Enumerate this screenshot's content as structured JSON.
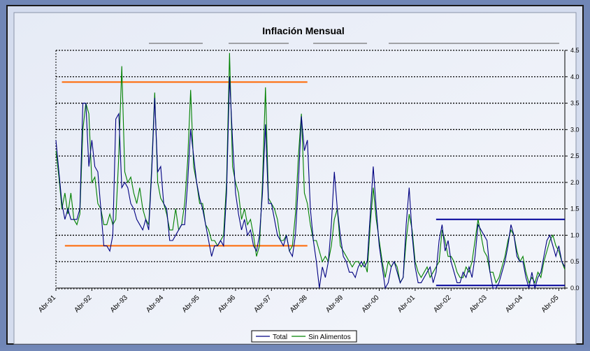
{
  "chart_data": {
    "type": "line",
    "title": "Inflación Mensual",
    "categories": [
      "Abr-91",
      null,
      null,
      null,
      null,
      null,
      null,
      null,
      null,
      null,
      null,
      null,
      "Abr-92",
      null,
      null,
      null,
      null,
      null,
      null,
      null,
      null,
      null,
      null,
      null,
      "Abr-93",
      null,
      null,
      null,
      null,
      null,
      null,
      null,
      null,
      null,
      null,
      null,
      "Abr-94",
      null,
      null,
      null,
      null,
      null,
      null,
      null,
      null,
      null,
      null,
      null,
      "Abr-95",
      null,
      null,
      null,
      null,
      null,
      null,
      null,
      null,
      null,
      null,
      null,
      "Abr-96",
      null,
      null,
      null,
      null,
      null,
      null,
      null,
      null,
      null,
      null,
      null,
      "Abr-97",
      null,
      null,
      null,
      null,
      null,
      null,
      null,
      null,
      null,
      null,
      null,
      "Abr-98",
      null,
      null,
      null,
      null,
      null,
      null,
      null,
      null,
      null,
      null,
      null,
      "Abr-99",
      null,
      null,
      null,
      null,
      null,
      null,
      null,
      null,
      null,
      null,
      null,
      "Abr-00",
      null,
      null,
      null,
      null,
      null,
      null,
      null,
      null,
      null,
      null,
      null,
      "Abr-01",
      null,
      null,
      null,
      null,
      null,
      null,
      null,
      null,
      null,
      null,
      null,
      "Abr-02",
      null,
      null,
      null,
      null,
      null,
      null,
      null,
      null,
      null,
      null,
      null,
      "Abr-03",
      null,
      null,
      null,
      null,
      null,
      null,
      null,
      null,
      null,
      null,
      null,
      "Abr-04",
      null,
      null,
      null,
      null,
      null,
      null,
      null,
      null,
      null,
      null,
      null,
      "Abr-05",
      null,
      null
    ],
    "series": [
      {
        "name": "Total",
        "color": "#000080",
        "values": [
          2.8,
          2.2,
          1.6,
          1.3,
          1.5,
          1.3,
          1.3,
          1.3,
          1.5,
          3.5,
          3.5,
          2.3,
          2.8,
          2.3,
          2.2,
          1.5,
          0.8,
          0.8,
          0.7,
          1.0,
          3.2,
          3.3,
          1.9,
          2.0,
          1.9,
          1.6,
          1.5,
          1.3,
          1.2,
          1.1,
          1.3,
          1.1,
          2.2,
          3.6,
          2.2,
          2.3,
          1.6,
          1.5,
          0.9,
          0.9,
          1.0,
          1.1,
          1.2,
          1.2,
          2.0,
          3.0,
          2.5,
          2.0,
          1.7,
          1.5,
          1.2,
          0.9,
          0.6,
          0.8,
          0.8,
          0.9,
          0.8,
          1.8,
          4.0,
          2.8,
          1.8,
          1.4,
          1.1,
          1.3,
          1.0,
          1.1,
          0.8,
          0.7,
          1.0,
          1.8,
          3.1,
          1.6,
          1.6,
          1.3,
          1.0,
          0.9,
          0.8,
          1.0,
          0.7,
          0.6,
          1.0,
          2.0,
          3.25,
          2.6,
          2.8,
          1.5,
          0.9,
          0.5,
          0.0,
          0.4,
          0.2,
          0.5,
          1.2,
          2.2,
          1.5,
          1.0,
          0.6,
          0.5,
          0.3,
          0.3,
          0.2,
          0.4,
          0.5,
          0.4,
          0.5,
          1.4,
          2.3,
          1.5,
          0.8,
          0.4,
          0.0,
          0.1,
          0.4,
          0.5,
          0.3,
          0.1,
          0.2,
          1.2,
          1.9,
          1.0,
          0.4,
          0.1,
          0.1,
          0.2,
          0.3,
          0.4,
          0.1,
          0.3,
          0.9,
          1.2,
          0.7,
          0.9,
          0.5,
          0.3,
          0.1,
          0.1,
          0.3,
          0.2,
          0.4,
          0.2,
          0.6,
          1.2,
          1.1,
          1.0,
          0.9,
          0.3,
          0.0,
          0.0,
          0.1,
          0.3,
          0.5,
          0.8,
          1.2,
          1.0,
          0.6,
          0.5,
          0.5,
          0.2,
          0.0,
          0.3,
          0.0,
          0.2,
          0.3,
          0.6,
          0.9,
          1.0,
          0.8,
          0.6,
          0.8,
          0.5,
          0.4
        ]
      },
      {
        "name": "Sin Alimentos",
        "color": "#008000",
        "values": [
          2.6,
          2.1,
          1.5,
          1.8,
          1.4,
          1.8,
          1.3,
          1.2,
          1.4,
          3.0,
          3.5,
          3.3,
          2.0,
          2.1,
          1.6,
          1.5,
          1.2,
          1.2,
          1.4,
          1.2,
          1.3,
          2.5,
          4.2,
          2.2,
          2.0,
          2.1,
          1.8,
          1.6,
          1.9,
          1.5,
          1.3,
          1.2,
          2.3,
          3.7,
          2.0,
          1.7,
          1.6,
          1.4,
          1.1,
          1.1,
          1.5,
          1.1,
          1.2,
          1.6,
          2.4,
          3.75,
          2.3,
          2.0,
          1.6,
          1.6,
          1.2,
          1.1,
          0.9,
          0.9,
          0.8,
          0.9,
          1.0,
          2.0,
          4.45,
          2.3,
          2.0,
          1.8,
          1.3,
          1.5,
          1.2,
          1.3,
          1.0,
          0.6,
          0.8,
          2.0,
          3.8,
          1.7,
          1.6,
          1.5,
          1.3,
          0.9,
          0.9,
          1.0,
          0.7,
          0.8,
          1.4,
          2.5,
          3.3,
          1.8,
          1.6,
          1.2,
          0.9,
          0.9,
          0.7,
          0.5,
          0.6,
          0.5,
          0.8,
          1.3,
          1.5,
          0.8,
          0.7,
          0.6,
          0.5,
          0.4,
          0.5,
          0.5,
          0.4,
          0.5,
          0.3,
          1.2,
          1.9,
          1.3,
          0.9,
          0.5,
          0.2,
          0.5,
          0.4,
          0.5,
          0.4,
          0.1,
          0.2,
          0.9,
          1.4,
          1.1,
          0.5,
          0.3,
          0.2,
          0.3,
          0.4,
          0.2,
          0.3,
          0.4,
          0.5,
          1.1,
          0.9,
          0.6,
          0.6,
          0.5,
          0.3,
          0.2,
          0.2,
          0.4,
          0.3,
          0.5,
          0.9,
          1.3,
          1.0,
          0.7,
          0.6,
          0.3,
          0.3,
          0.1,
          0.2,
          0.4,
          0.6,
          0.9,
          1.1,
          1.0,
          0.7,
          0.5,
          0.6,
          0.3,
          0.1,
          0.2,
          0.1,
          0.3,
          0.2,
          0.5,
          0.7,
          0.9,
          1.0,
          0.8,
          0.7,
          0.5,
          0.35
        ]
      }
    ],
    "reference_lines": [
      {
        "y": 3.9,
        "from": 2,
        "to": 84,
        "color": "#ff6600"
      },
      {
        "y": 0.8,
        "from": 3,
        "to": 84,
        "color": "#ff6600"
      },
      {
        "y": 1.3,
        "from": 127,
        "to": 170,
        "color": "#000099"
      },
      {
        "y": 0.05,
        "from": 127,
        "to": 170,
        "color": "#000099"
      }
    ],
    "ylim": [
      0,
      4.5
    ],
    "yticks": [
      {
        "value": 0,
        "label": "0.0"
      },
      0.5,
      {
        "value": 1,
        "label": "1.0"
      },
      1.5,
      {
        "value": 2,
        "label": "2.0"
      },
      2.5,
      {
        "value": 3,
        "label": "3.0"
      },
      3.5,
      {
        "value": 4,
        "label": "4.0"
      },
      4.5
    ],
    "grid": true,
    "legend": "bottom"
  }
}
